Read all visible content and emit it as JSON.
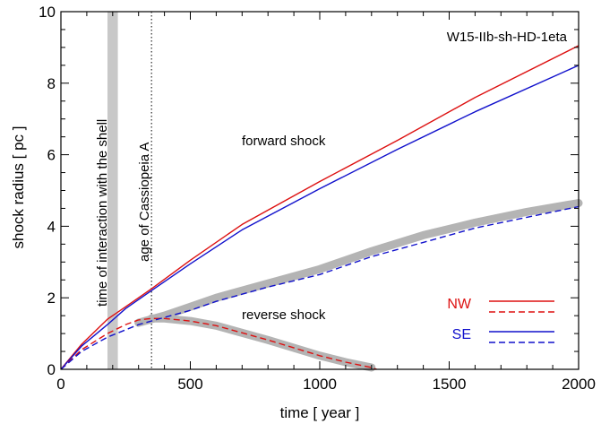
{
  "chart_data": {
    "type": "line",
    "title": "W15-IIb-sh-HD-1eta",
    "xlabel": "time [ year ]",
    "ylabel": "shock radius [ pc ]",
    "xlim": [
      0,
      2000
    ],
    "ylim": [
      0,
      10
    ],
    "xticks": [
      0,
      500,
      1000,
      1500,
      2000
    ],
    "yticks": [
      0,
      2,
      4,
      6,
      8,
      10
    ],
    "grid": false,
    "colors": {
      "NW": "#dd1111",
      "SE": "#1111cc",
      "band": "#c8c8c8"
    },
    "annotations": {
      "shell_label": "time of interaction with the shell",
      "shell_band": [
        180,
        220
      ],
      "casa_label": "age of Cassiopeia A",
      "casa_time": 350,
      "forward_label": "forward shock",
      "reverse_label": "reverse shock"
    },
    "legend": {
      "position": "bottom-right",
      "entries": [
        {
          "name": "NW",
          "color": "#dd1111"
        },
        {
          "name": "SE",
          "color": "#1111cc"
        }
      ]
    },
    "series": [
      {
        "name": "NW forward shock",
        "color": "#dd1111",
        "dash": false,
        "x": [
          0,
          80,
          180,
          250,
          350,
          500,
          700,
          1000,
          1300,
          1600,
          2000
        ],
        "y": [
          0,
          0.7,
          1.4,
          1.75,
          2.25,
          3.05,
          4.05,
          5.25,
          6.4,
          7.6,
          9.05
        ]
      },
      {
        "name": "SE forward shock",
        "color": "#1111cc",
        "dash": false,
        "x": [
          0,
          80,
          180,
          250,
          350,
          500,
          700,
          1000,
          1300,
          1600,
          2000
        ],
        "y": [
          0,
          0.65,
          1.25,
          1.7,
          2.2,
          2.95,
          3.9,
          5.05,
          6.15,
          7.2,
          8.5
        ]
      },
      {
        "name": "NW reverse shock",
        "color": "#dd1111",
        "dash": true,
        "x": [
          0,
          80,
          180,
          250,
          300,
          350,
          400,
          500,
          600,
          800,
          1000,
          1100,
          1200,
          1220
        ],
        "y": [
          0,
          0.55,
          1.0,
          1.25,
          1.38,
          1.42,
          1.42,
          1.35,
          1.22,
          0.82,
          0.38,
          0.2,
          0.05,
          0
        ]
      },
      {
        "name": "SE reverse shock",
        "color": "#1111cc",
        "dash": true,
        "x": [
          0,
          80,
          180,
          300,
          400,
          500,
          600,
          800,
          1000,
          1200,
          1400,
          1600,
          1800,
          2000
        ],
        "y": [
          0,
          0.5,
          0.9,
          1.25,
          1.45,
          1.65,
          1.9,
          2.3,
          2.65,
          3.15,
          3.55,
          3.95,
          4.25,
          4.55
        ]
      },
      {
        "name": "reverse shock band (expanding)",
        "color": "#b4b4b4",
        "dash": false,
        "width": "band",
        "x": [
          300,
          400,
          500,
          600,
          800,
          1000,
          1200,
          1400,
          1600,
          1800,
          2000
        ],
        "y": [
          1.3,
          1.5,
          1.75,
          2.0,
          2.4,
          2.8,
          3.3,
          3.75,
          4.1,
          4.4,
          4.65
        ]
      },
      {
        "name": "reverse shock band (receding)",
        "color": "#b4b4b4",
        "dash": false,
        "width": "band",
        "x": [
          350,
          400,
          500,
          600,
          800,
          1000,
          1100,
          1200
        ],
        "y": [
          1.42,
          1.42,
          1.35,
          1.22,
          0.82,
          0.38,
          0.2,
          0.05
        ]
      }
    ]
  }
}
